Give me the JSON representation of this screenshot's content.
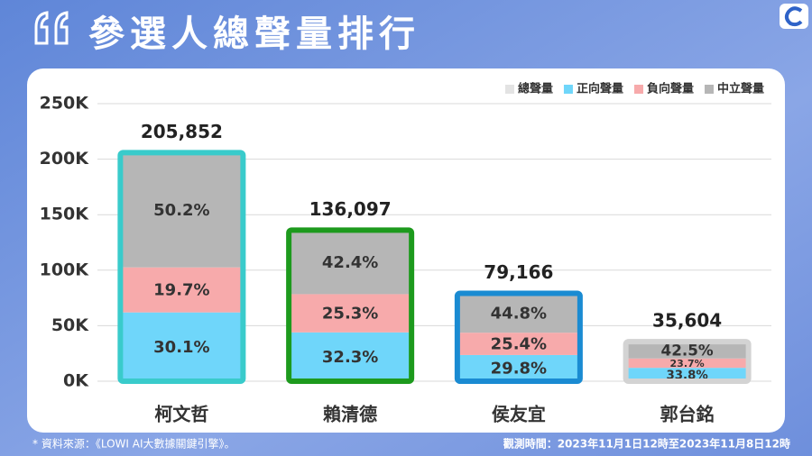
{
  "header": {
    "title": "參選人總聲量排行"
  },
  "chart_data": {
    "type": "stacked-bar",
    "categories": [
      "柯文哲",
      "賴清德",
      "侯友宜",
      "郭台銘"
    ],
    "series": [
      {
        "name": "總聲量",
        "color": "#e3e3e3",
        "values": [
          205852,
          136097,
          79166,
          35604
        ],
        "value_labels": [
          "205,852",
          "136,097",
          "79,166",
          "35,604"
        ],
        "outline_colors": [
          "#39cbcb",
          "#1d9a1d",
          "#1a8bd2",
          "#d3d3d3"
        ]
      },
      {
        "name": "正向聲量",
        "color": "#6fd6fa",
        "values": [
          30.1,
          32.3,
          29.8,
          33.8
        ],
        "value_labels": [
          "30.1%",
          "32.3%",
          "29.8%",
          "33.8%"
        ]
      },
      {
        "name": "負向聲量",
        "color": "#f7aaab",
        "values": [
          19.7,
          25.3,
          25.4,
          23.7
        ],
        "value_labels": [
          "19.7%",
          "25.3%",
          "25.4%",
          "23.7%"
        ]
      },
      {
        "name": "中立聲量",
        "color": "#b6b6b6",
        "values": [
          50.2,
          42.4,
          44.8,
          42.5
        ],
        "value_labels": [
          "50.2%",
          "42.4%",
          "44.8%",
          "42.5%"
        ]
      }
    ],
    "ylim": [
      0,
      250000
    ],
    "yticks": [
      {
        "value": 0,
        "label": "0K"
      },
      {
        "value": 50000,
        "label": "50K"
      },
      {
        "value": 100000,
        "label": "100K"
      },
      {
        "value": 150000,
        "label": "150K"
      },
      {
        "value": 200000,
        "label": "200K"
      },
      {
        "value": 250000,
        "label": "250K"
      }
    ],
    "grid": true,
    "legend": "top-right"
  },
  "footer": {
    "source": "* 資料來源：《LOWI AI大數據關鍵引擎》。",
    "period": "觀測時間：2023年11月1日12時至2023年11月8日12時"
  }
}
